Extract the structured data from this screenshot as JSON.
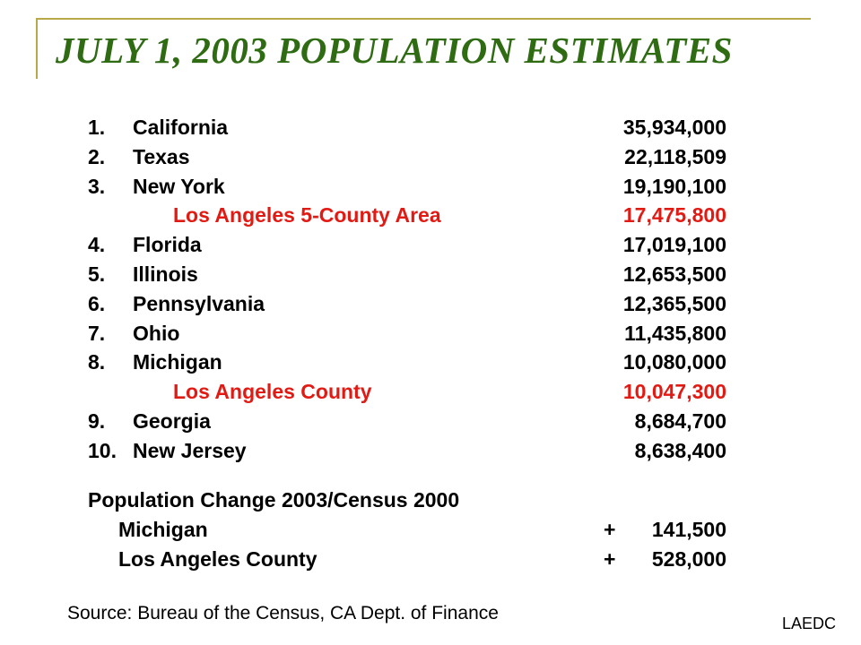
{
  "title": "JULY 1, 2003 POPULATION ESTIMATES",
  "colors": {
    "title": "#2e6b12",
    "highlight": "#e11b14",
    "frame": "#b8a84a"
  },
  "rows": [
    {
      "rank": "1.",
      "name": "California",
      "value": "35,934,000"
    },
    {
      "rank": "2.",
      "name": "Texas",
      "value": "22,118,509"
    },
    {
      "rank": "3.",
      "name": "New York",
      "value": "19,190,100"
    },
    {
      "rank": "",
      "name": "Los Angeles 5-County Area",
      "value": "17,475,800"
    },
    {
      "rank": "4.",
      "name": "Florida",
      "value": "17,019,100"
    },
    {
      "rank": "5.",
      "name": "Illinois",
      "value": "12,653,500"
    },
    {
      "rank": "6.",
      "name": "Pennsylvania",
      "value": "12,365,500"
    },
    {
      "rank": "7.",
      "name": "Ohio",
      "value": "11,435,800"
    },
    {
      "rank": "8.",
      "name": "Michigan",
      "value": "10,080,000"
    },
    {
      "rank": "",
      "name": "Los Angeles County",
      "value": "10,047,300"
    },
    {
      "rank": "9.",
      "name": "Georgia",
      "value": "8,684,700"
    },
    {
      "rank": "10.",
      "name": "New Jersey",
      "value": "8,638,400"
    }
  ],
  "change": {
    "heading": "Population Change 2003/Census 2000",
    "items": [
      {
        "name": "Michigan",
        "sign": "+",
        "value": "141,500"
      },
      {
        "name": "Los Angeles County",
        "sign": "+",
        "value": "528,000"
      }
    ]
  },
  "source": "Source:  Bureau of the Census, CA Dept. of Finance",
  "corner_label": "LAEDC"
}
